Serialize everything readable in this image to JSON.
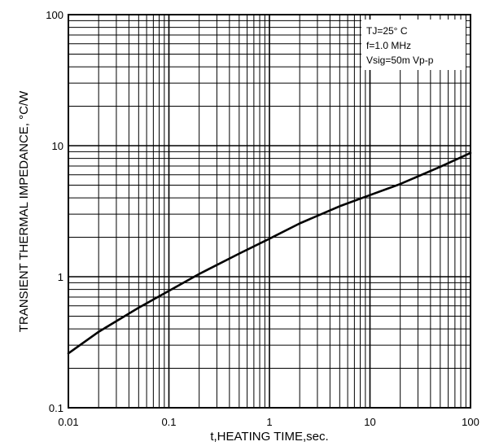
{
  "chart_data": {
    "type": "line",
    "title": "",
    "xlabel": "t,HEATING TIME,sec.",
    "ylabel": "TRANSIENT THERMAL IMPEDANCE, °C/W",
    "xscale": "log",
    "yscale": "log",
    "xlim": [
      0.01,
      100
    ],
    "ylim": [
      0.1,
      100
    ],
    "grid": true,
    "x_ticks": [
      "0.01",
      "0.1",
      "1",
      "10",
      "100"
    ],
    "y_ticks": [
      "0.1",
      "1",
      "10",
      "100"
    ],
    "annotation": {
      "placement": "top-right",
      "lines": [
        "TJ=25° C",
        "f=1.0 MHz",
        "Vsig=50m Vp-p"
      ]
    },
    "series": [
      {
        "x": [
          0.01,
          0.02,
          0.05,
          0.1,
          0.2,
          0.5,
          1,
          2,
          5,
          10,
          20,
          50,
          100
        ],
        "y": [
          0.26,
          0.38,
          0.58,
          0.78,
          1.05,
          1.5,
          1.95,
          2.55,
          3.45,
          4.2,
          5.1,
          6.9,
          8.8
        ]
      }
    ]
  }
}
